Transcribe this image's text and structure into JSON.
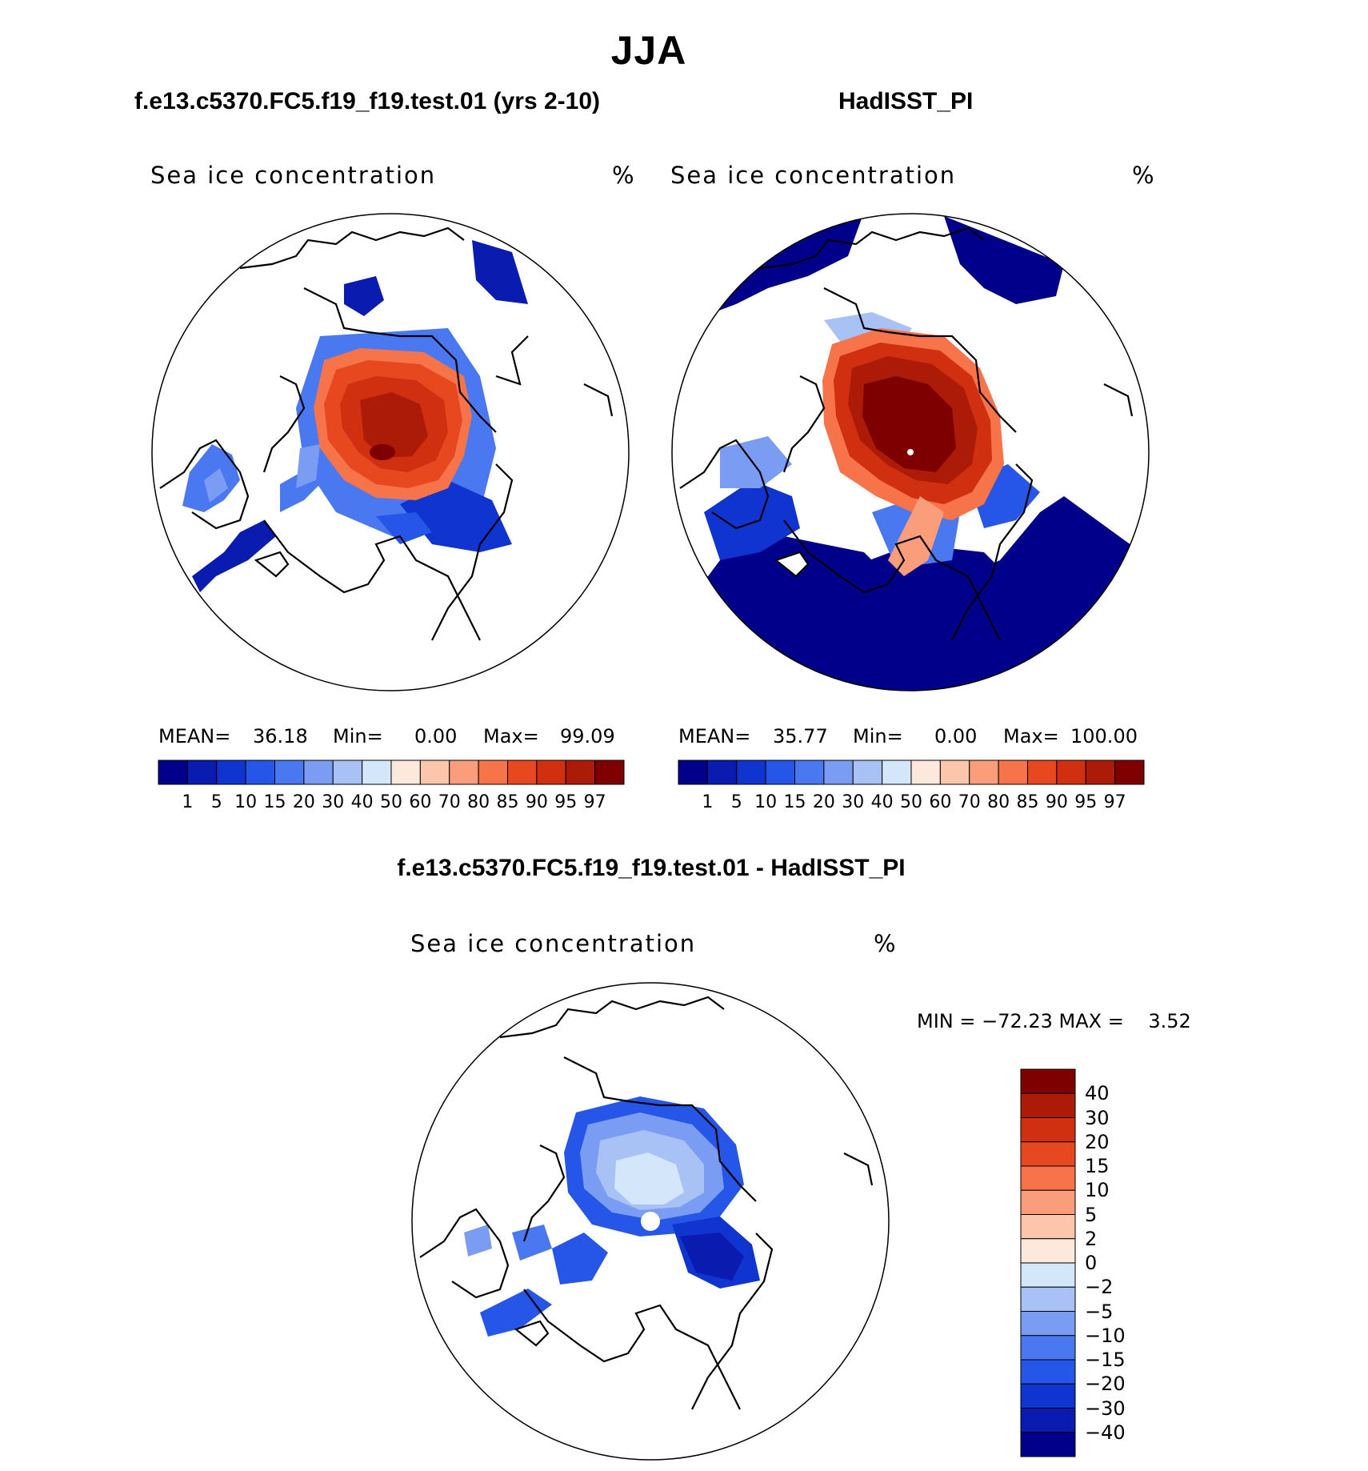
{
  "figure": {
    "title": "JJA",
    "panels": [
      {
        "id": "model",
        "title": "f.e13.c5370.FC5.f19_f19.test.01 (yrs 2-10)",
        "variable": "Sea ice concentration",
        "units": "%",
        "stats": {
          "mean_label": "MEAN=",
          "mean": "36.18",
          "min_label": "Min=",
          "min": "0.00",
          "max_label": "Max=",
          "max": "99.09"
        }
      },
      {
        "id": "obs",
        "title": "HadISST_PI",
        "variable": "Sea ice concentration",
        "units": "%",
        "stats": {
          "mean_label": "MEAN=",
          "mean": "35.77",
          "min_label": "Min=",
          "min": "0.00",
          "max_label": "Max=",
          "max": "100.00"
        }
      },
      {
        "id": "diff",
        "title": "f.e13.c5370.FC5.f19_f19.test.01 - HadISST_PI",
        "variable": "Sea ice concentration",
        "units": "%",
        "stats": {
          "text": "MIN = −72.23 MAX =    3.52"
        }
      }
    ]
  },
  "colorbar_main": {
    "ticks": [
      "1",
      "5",
      "10",
      "15",
      "20",
      "30",
      "40",
      "50",
      "60",
      "70",
      "80",
      "85",
      "90",
      "95",
      "97"
    ],
    "colors": [
      "#00008b",
      "#0a1bb0",
      "#1034d0",
      "#2556e8",
      "#4a78f0",
      "#7a9cf3",
      "#a8c2f6",
      "#d3e6fa",
      "#fde8dc",
      "#fcc6ad",
      "#fa9d7a",
      "#f7734a",
      "#e8481f",
      "#d02f10",
      "#ac1a08",
      "#7f0000"
    ]
  },
  "colorbar_diff": {
    "ticks": [
      "40",
      "30",
      "20",
      "15",
      "10",
      "5",
      "2",
      "0",
      "−2",
      "−5",
      "−10",
      "−15",
      "−20",
      "−30",
      "−40"
    ],
    "colors": [
      "#7f0000",
      "#ac1a08",
      "#d02f10",
      "#e8481f",
      "#f7734a",
      "#fa9d7a",
      "#fcc6ad",
      "#fde8dc",
      "#d3e6fa",
      "#a8c2f6",
      "#7a9cf3",
      "#4a78f0",
      "#2556e8",
      "#1034d0",
      "#0a1bb0",
      "#00008b"
    ]
  },
  "map_data": {
    "projection": "north-polar-stereographic",
    "model_summary": "high concentration (90-99%) centered over central Arctic, blue fringes in Hudson Bay, Baffin Bay, Greenland Sea",
    "obs_summary": "near-100% central Arctic, extensive 1-5% (dark blue) open ocean fill in North Atlantic and North Pacific",
    "diff_summary": "mostly negative differences (light to dark blue), strongest in Barents and Greenland seas"
  }
}
